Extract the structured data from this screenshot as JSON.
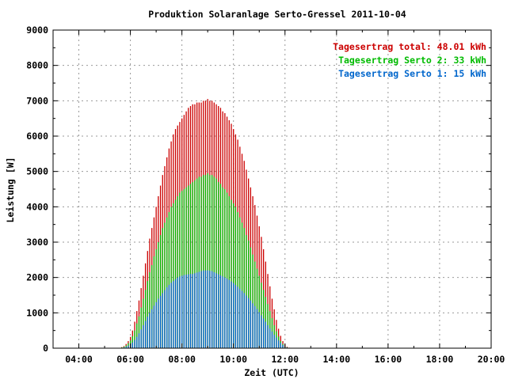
{
  "chart_data": {
    "type": "bar",
    "title": "Produktion Solaranlage Serto-Gressel 2011-10-04",
    "xlabel": "Zeit (UTC)",
    "ylabel": "Leistung [W]",
    "xlim": [
      3.0,
      20.0
    ],
    "ylim": [
      0,
      9000
    ],
    "x_ticks": [
      {
        "value": 4,
        "label": "04:00"
      },
      {
        "value": 6,
        "label": "06:00"
      },
      {
        "value": 8,
        "label": "08:00"
      },
      {
        "value": 10,
        "label": "10:00"
      },
      {
        "value": 12,
        "label": "12:00"
      },
      {
        "value": 14,
        "label": "14:00"
      },
      {
        "value": 16,
        "label": "16:00"
      },
      {
        "value": 18,
        "label": "18:00"
      },
      {
        "value": 20,
        "label": "20:00"
      }
    ],
    "y_ticks": [
      0,
      1000,
      2000,
      3000,
      4000,
      5000,
      6000,
      7000,
      8000,
      9000
    ],
    "grid": true,
    "legend_position": "top-right",
    "x_start": 5.5,
    "x_step": 0.0833,
    "series": [
      {
        "name": "Tagesertrag total: 48.01 kWh",
        "color": "#cc0000",
        "values": [
          0,
          10,
          30,
          60,
          120,
          200,
          320,
          500,
          750,
          1050,
          1350,
          1700,
          2050,
          2400,
          2750,
          3100,
          3400,
          3700,
          4000,
          4300,
          4600,
          4900,
          5150,
          5400,
          5650,
          5850,
          6050,
          6200,
          6300,
          6400,
          6500,
          6600,
          6700,
          6800,
          6850,
          6900,
          6900,
          6950,
          6950,
          6950,
          7000,
          7000,
          7050,
          7000,
          7000,
          6950,
          6900,
          6850,
          6800,
          6700,
          6650,
          6550,
          6450,
          6350,
          6200,
          6050,
          5900,
          5700,
          5500,
          5300,
          5050,
          4800,
          4550,
          4300,
          4050,
          3750,
          3450,
          3150,
          2800,
          2450,
          2100,
          1750,
          1400,
          1100,
          800,
          550,
          350,
          200,
          100,
          40,
          15,
          0
        ]
      },
      {
        "name": "Tagesertrag Serto 2: 33 kWh",
        "color": "#00bb00",
        "values": [
          0,
          5,
          20,
          40,
          80,
          140,
          220,
          340,
          500,
          700,
          900,
          1150,
          1400,
          1650,
          1900,
          2150,
          2350,
          2600,
          2800,
          3000,
          3200,
          3400,
          3550,
          3700,
          3850,
          4000,
          4100,
          4200,
          4300,
          4400,
          4450,
          4500,
          4550,
          4600,
          4650,
          4700,
          4750,
          4800,
          4850,
          4850,
          4900,
          4900,
          4950,
          4900,
          4900,
          4850,
          4800,
          4700,
          4650,
          4550,
          4500,
          4400,
          4300,
          4200,
          4100,
          4000,
          3850,
          3700,
          3550,
          3400,
          3200,
          3050,
          2850,
          2650,
          2450,
          2250,
          2050,
          1850,
          1650,
          1450,
          1250,
          1050,
          850,
          650,
          480,
          330,
          200,
          120,
          60,
          25,
          8,
          0
        ]
      },
      {
        "name": "Tagesertrag Serto 1: 15 kWh",
        "color": "#0066cc",
        "values": [
          0,
          2,
          10,
          20,
          40,
          70,
          110,
          160,
          230,
          320,
          420,
          530,
          650,
          770,
          890,
          1000,
          1100,
          1200,
          1300,
          1400,
          1480,
          1560,
          1640,
          1720,
          1790,
          1850,
          1900,
          1950,
          2000,
          2030,
          2050,
          2070,
          2080,
          2090,
          2100,
          2100,
          2120,
          2140,
          2160,
          2180,
          2200,
          2200,
          2200,
          2190,
          2180,
          2150,
          2120,
          2090,
          2060,
          2030,
          2000,
          1970,
          1930,
          1890,
          1840,
          1790,
          1740,
          1680,
          1620,
          1560,
          1490,
          1420,
          1350,
          1270,
          1190,
          1110,
          1020,
          930,
          840,
          750,
          650,
          560,
          470,
          380,
          300,
          220,
          150,
          90,
          45,
          18,
          5,
          0
        ]
      }
    ]
  }
}
